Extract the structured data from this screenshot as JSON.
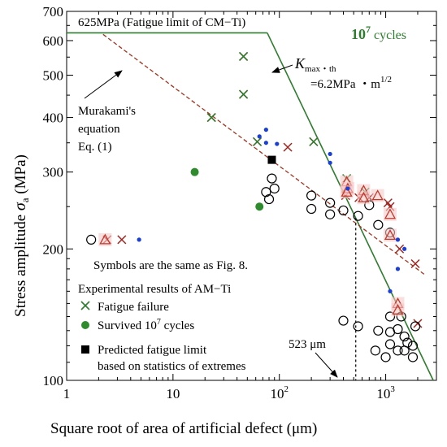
{
  "chart_data": {
    "type": "scatter",
    "xscale": "log",
    "yscale": "log",
    "xlim": [
      1,
      3000
    ],
    "ylim": [
      100,
      700
    ],
    "x_ticks": [
      {
        "value": 1,
        "label": "1"
      },
      {
        "value": 10,
        "label": "10"
      },
      {
        "value": 100,
        "label": "10",
        "exp": "2"
      },
      {
        "value": 1000,
        "label": "10",
        "exp": "3"
      }
    ],
    "y_ticks": [
      {
        "value": 100,
        "label": "100"
      },
      {
        "value": 200,
        "label": "200"
      },
      {
        "value": 300,
        "label": "300"
      },
      {
        "value": 400,
        "label": "400"
      },
      {
        "value": 500,
        "label": "500"
      },
      {
        "value": 600,
        "label": "600"
      },
      {
        "value": 700,
        "label": "700"
      }
    ],
    "xlabel": "Square root of area of artificial defect  (μm)",
    "ylabel_text": "Stress amplitude  ",
    "ylabel_symbol": "σ",
    "ylabel_sub": "a",
    "ylabel_unit": " (MPa)",
    "fatigue_limit_label": "625MPa (Fatigue limit of CM−Ti)",
    "cycles_label": {
      "base": "10",
      "exp": "7",
      "rest": " cycles"
    },
    "kmax_label": {
      "k": "K",
      "sub": "max・th",
      "line2": "=6.2MPa ・m",
      "exp": "1/2"
    },
    "murakami_label": [
      "Murakami's",
      "equation",
      "Eq. (1)"
    ],
    "symbols_note": "Symbols are the same as Fig. 8.",
    "defect_label": "523 μm",
    "legend": {
      "title": "Experimental results of AM−Ti",
      "failure": "Fatigue failure",
      "survived_text": "Survived 10",
      "survived_exp": "7",
      "survived_tail": " cycles",
      "predicted_line1": "Predicted fatigue limit",
      "predicted_line2": "based on statistics of extremes"
    },
    "lines": {
      "fatigue_limit": {
        "value": 625,
        "x_end": 77
      },
      "kmax_line": [
        [
          77,
          625
        ],
        [
          2800,
          100
        ]
      ],
      "murakami": [
        [
          2.2,
          620
        ],
        [
          2300,
          175
        ]
      ],
      "defect_marker": 523
    },
    "series": [
      {
        "name": "Fatigue failure",
        "marker": "x",
        "color": "#a0251f",
        "points": [
          [
            2.4,
            210
          ],
          [
            3.3,
            210
          ],
          [
            46,
            552
          ],
          [
            46,
            452
          ],
          [
            23,
            400
          ],
          [
            62,
            352
          ],
          [
            120,
            342
          ],
          [
            210,
            352
          ],
          [
            420,
            265
          ],
          [
            560,
            262
          ],
          [
            700,
            262
          ],
          [
            1050,
            255
          ],
          [
            1100,
            250
          ],
          [
            1350,
            200
          ],
          [
            1900,
            185
          ],
          [
            2000,
            135
          ]
        ]
      },
      {
        "name": "Fatigue failure",
        "marker": "x",
        "color": "#2e7d2e",
        "points": [
          [
            46,
            552
          ],
          [
            46,
            452
          ],
          [
            23,
            400
          ],
          [
            62,
            352
          ],
          [
            210,
            352
          ],
          [
            430,
            290
          ],
          [
            640,
            270
          ]
        ]
      },
      {
        "name": "Survived 10^7 cycles",
        "marker": "dot",
        "color": "#2e8b2e",
        "points": [
          [
            16,
            300
          ],
          [
            65,
            250
          ]
        ]
      },
      {
        "name": "Predicted fatigue limit",
        "marker": "square",
        "color": "#000000",
        "points": [
          [
            85,
            320
          ]
        ]
      },
      {
        "marker": "circle",
        "color": "#000000",
        "points": [
          [
            1.7,
            210
          ],
          [
            75,
            270
          ],
          [
            80,
            260
          ],
          [
            85,
            290
          ],
          [
            90,
            275
          ],
          [
            200,
            265
          ],
          [
            200,
            247
          ],
          [
            300,
            240
          ],
          [
            300,
            255
          ],
          [
            400,
            245
          ],
          [
            550,
            238
          ],
          [
            700,
            252
          ],
          [
            850,
            227
          ],
          [
            1100,
            218
          ],
          [
            550,
            133
          ],
          [
            400,
            137
          ],
          [
            1100,
            140
          ],
          [
            1100,
            129
          ],
          [
            1300,
            131
          ],
          [
            1500,
            126
          ],
          [
            1600,
            122
          ],
          [
            1800,
            120
          ],
          [
            1100,
            121
          ],
          [
            1300,
            117
          ],
          [
            1500,
            117
          ],
          [
            1800,
            113
          ],
          [
            1900,
            133
          ],
          [
            1400,
            140
          ],
          [
            1000,
            113
          ],
          [
            850,
            130
          ],
          [
            800,
            117
          ]
        ]
      },
      {
        "marker": "triangle",
        "color": "#c0392b",
        "points": [
          [
            2.3,
            210
          ],
          [
            430,
            285
          ],
          [
            440,
            275
          ],
          [
            430,
            270
          ],
          [
            620,
            272
          ],
          [
            620,
            262
          ],
          [
            840,
            265
          ],
          [
            1100,
            240
          ],
          [
            1100,
            215
          ],
          [
            1300,
            150
          ],
          [
            1300,
            145
          ]
        ]
      },
      {
        "marker": "bluedot",
        "color": "#1a3fd6",
        "points": [
          [
            4.8,
            210
          ],
          [
            65,
            362
          ],
          [
            75,
            375
          ],
          [
            75,
            350
          ],
          [
            95,
            348
          ],
          [
            300,
            330
          ],
          [
            300,
            315
          ],
          [
            440,
            275
          ],
          [
            1300,
            210
          ],
          [
            1500,
            200
          ],
          [
            1100,
            160
          ],
          [
            1300,
            180
          ]
        ]
      }
    ]
  }
}
